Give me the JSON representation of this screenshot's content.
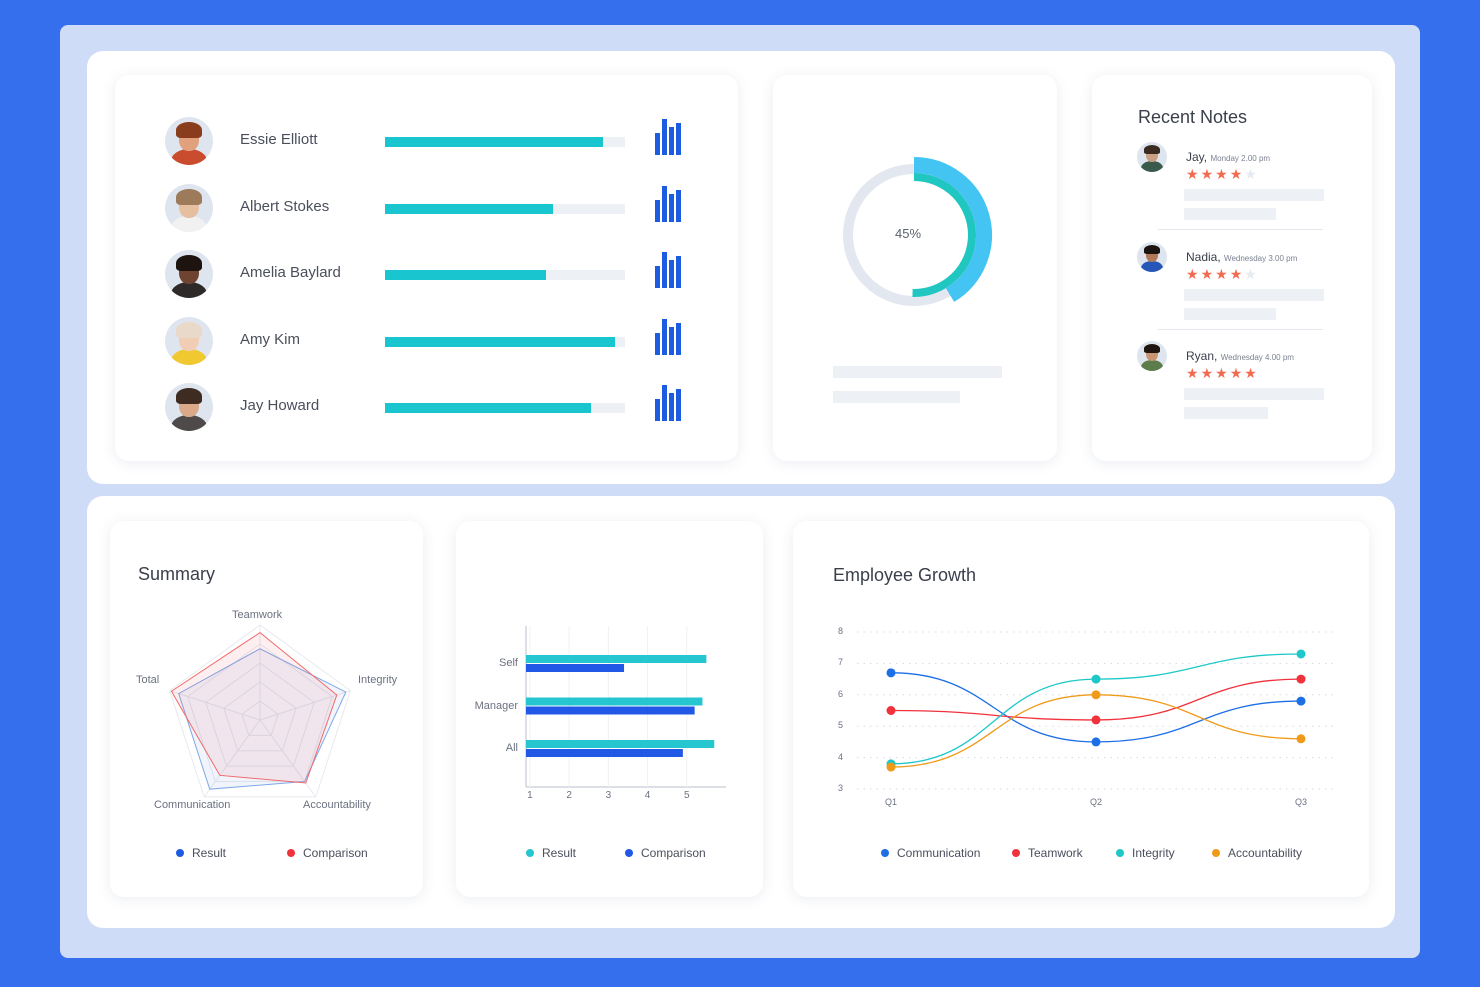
{
  "people": [
    {
      "name": "Essie Elliott",
      "progress": 0.91,
      "skin": "#e0a17c",
      "hair": "#8a3d1c",
      "shirt": "#c94c2e"
    },
    {
      "name": "Albert Stokes",
      "progress": 0.7,
      "skin": "#e5bfa0",
      "hair": "#9c7a5a",
      "shirt": "#f1f1f1"
    },
    {
      "name": "Amelia Baylard",
      "progress": 0.67,
      "skin": "#6e4330",
      "hair": "#1d1410",
      "shirt": "#2f2a2a"
    },
    {
      "name": "Amy Kim",
      "progress": 0.96,
      "skin": "#f2cdb6",
      "hair": "#e9d9c8",
      "shirt": "#f0c830"
    },
    {
      "name": "Jay Howard",
      "progress": 0.86,
      "skin": "#d9a98a",
      "hair": "#3e2b22",
      "shirt": "#4e4a49"
    }
  ],
  "progress_icon": "bar-chart-icon",
  "donut": {
    "label": "45%",
    "value": 45,
    "colors": {
      "track": "#e3e7ef",
      "inner": "#1fc7c0",
      "outer": "#44c4f2"
    }
  },
  "notes": {
    "title": "Recent Notes",
    "items": [
      {
        "author": "Jay,",
        "time": "Monday 2.00 pm",
        "rating": 4,
        "skin": "#c9a083",
        "hair": "#3b2a20",
        "shirt": "#3a5a4c"
      },
      {
        "author": "Nadia,",
        "time": "Wednesday 3.00 pm",
        "rating": 4,
        "skin": "#b07a58",
        "hair": "#1c1410",
        "shirt": "#2656b8"
      },
      {
        "author": "Ryan,",
        "time": "Wednesday 4.00 pm",
        "rating": 5,
        "skin": "#c99470",
        "hair": "#20160f",
        "shirt": "#5c7c4c"
      }
    ]
  },
  "summary": {
    "title": "Summary",
    "legend": [
      {
        "label": "Result",
        "color": "#1d5be0"
      },
      {
        "label": "Comparison",
        "color": "#f0323c"
      }
    ]
  },
  "bar_legend": [
    {
      "label": "Result",
      "color": "#25c6cf"
    },
    {
      "label": "Comparison",
      "color": "#2258e6"
    }
  ],
  "growth": {
    "title": "Employee Growth"
  },
  "chart_data": [
    {
      "type": "radar",
      "axes": [
        "Teamwork",
        "Integrity",
        "Accountability",
        "Communication",
        "Total"
      ],
      "series": [
        {
          "name": "Result",
          "values": [
            0.75,
            0.95,
            0.8,
            0.9,
            0.9
          ],
          "color": "#7fa8e8"
        },
        {
          "name": "Comparison",
          "values": [
            0.92,
            0.85,
            0.82,
            0.72,
            0.98
          ],
          "color": "#f06a6a"
        }
      ]
    },
    {
      "type": "bar",
      "orientation": "horizontal",
      "categories": [
        "Self",
        "Manager",
        "All"
      ],
      "series": [
        {
          "name": "Result",
          "values": [
            5.5,
            5.4,
            5.7
          ],
          "color": "#25c6cf"
        },
        {
          "name": "Comparison",
          "values": [
            3.4,
            5.2,
            4.9
          ],
          "color": "#2258e6"
        }
      ],
      "xticks": [
        "1",
        "2",
        "3",
        "4",
        "5"
      ],
      "xlim": [
        0.9,
        6.0
      ]
    },
    {
      "type": "line",
      "x": [
        "Q1",
        "Q2",
        "Q3"
      ],
      "yticks": [
        "8",
        "7",
        "6",
        "5",
        "4",
        "3"
      ],
      "ylim": [
        3,
        8
      ],
      "series": [
        {
          "name": "Communication",
          "values": [
            6.7,
            4.5,
            5.8
          ],
          "color": "#1d6fe6"
        },
        {
          "name": "Teamwork",
          "values": [
            5.5,
            5.2,
            6.5
          ],
          "color": "#f0323c"
        },
        {
          "name": "Integrity",
          "values": [
            3.8,
            6.5,
            7.3
          ],
          "color": "#1ec8c8"
        },
        {
          "name": "Accountability",
          "values": [
            3.7,
            6.0,
            4.6
          ],
          "color": "#f09a1a"
        }
      ]
    }
  ]
}
